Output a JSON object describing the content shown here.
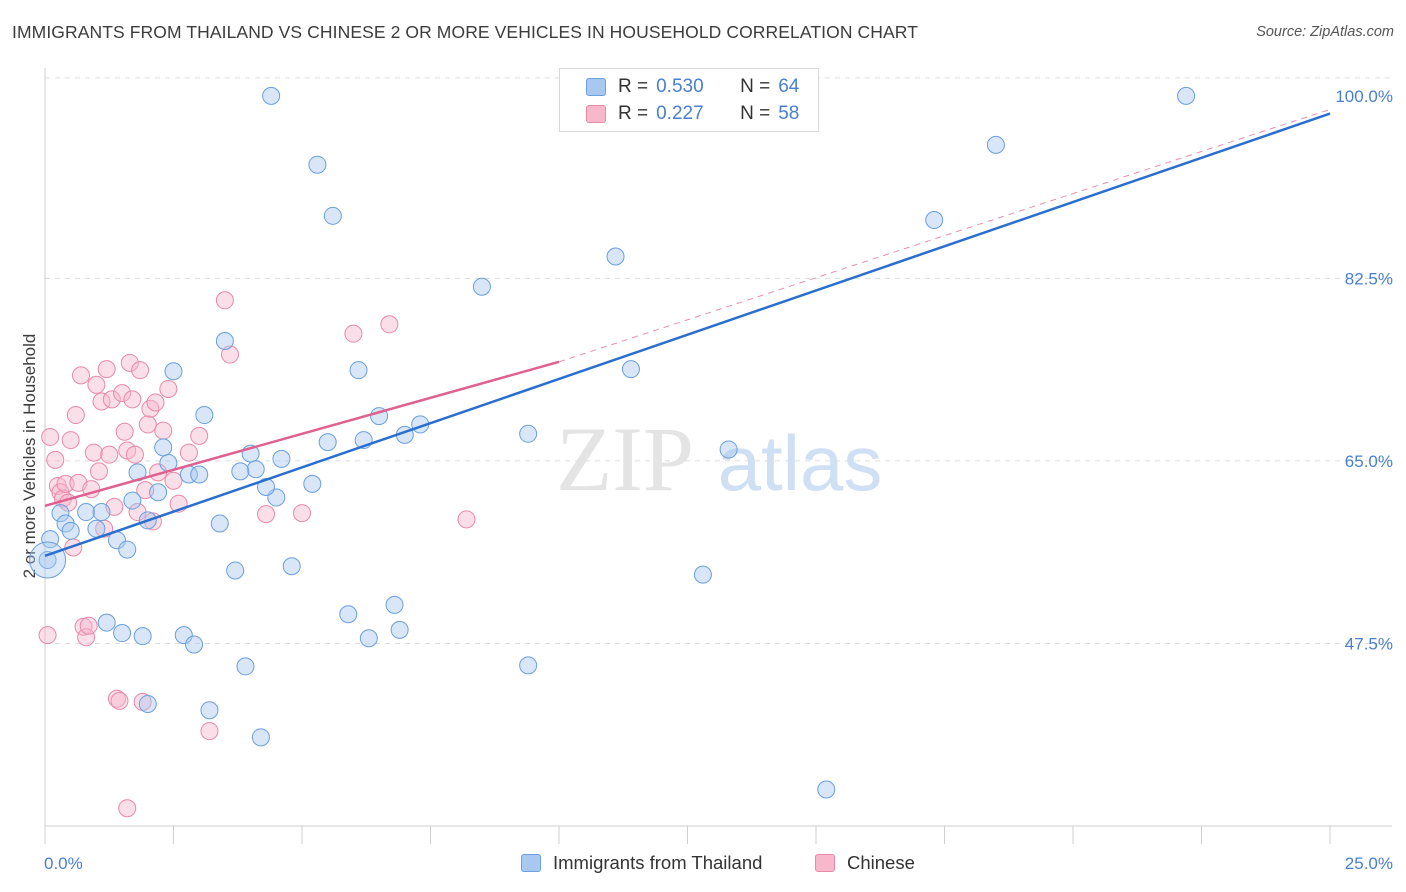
{
  "title": "IMMIGRANTS FROM THAILAND VS CHINESE 2 OR MORE VEHICLES IN HOUSEHOLD CORRELATION CHART",
  "source": "Source: ZipAtlas.com",
  "watermark": {
    "zip": "ZIP",
    "atlas": "atlas"
  },
  "legend": {
    "r_label": "R =",
    "n_label": "N =",
    "rows": [
      {
        "series": "Immigrants from Thailand",
        "r": "0.530",
        "n": "64"
      },
      {
        "series": "Chinese",
        "r": "0.227",
        "n": "58"
      }
    ]
  },
  "colors": {
    "blue_fill": "#a8c8f0",
    "blue_stroke": "#6a9fe0",
    "blue_line": "#2a6fcf",
    "pink_fill": "#f7b8cb",
    "pink_stroke": "#e889a8",
    "pink_line": "#e06090",
    "tick_label": "#4a7fd0",
    "grid": "#dcdcdc"
  },
  "chart_data": {
    "type": "scatter",
    "title": "IMMIGRANTS FROM THAILAND VS CHINESE 2 OR MORE VEHICLES IN HOUSEHOLD CORRELATION CHART",
    "xlabel": "",
    "ylabel": "2 or more Vehicles in Household",
    "x_tick_labels": [
      "0.0%",
      "25.0%"
    ],
    "y_tick_labels": [
      "100.0%",
      "82.5%",
      "65.0%",
      "47.5%"
    ],
    "y_ticks": [
      100.0,
      82.5,
      65.0,
      47.5
    ],
    "xlim": [
      0,
      25
    ],
    "ylim": [
      30,
      102
    ],
    "grid": true,
    "legend_position": "top-center",
    "series": [
      {
        "name": "Immigrants from Thailand",
        "r": 0.53,
        "n": 64,
        "trend": {
          "x": [
            0,
            25
          ],
          "y": [
            55.9,
            98.3
          ]
        },
        "points": [
          [
            0.1,
            57.5
          ],
          [
            0.3,
            60.0
          ],
          [
            0.4,
            59.0
          ],
          [
            0.5,
            58.3
          ],
          [
            0.8,
            60.1
          ],
          [
            1.0,
            58.5
          ],
          [
            1.1,
            60.1
          ],
          [
            1.4,
            57.4
          ],
          [
            1.2,
            49.5
          ],
          [
            1.5,
            48.5
          ],
          [
            1.9,
            48.2
          ],
          [
            1.6,
            56.5
          ],
          [
            1.7,
            61.2
          ],
          [
            2.0,
            59.3
          ],
          [
            2.2,
            62.0
          ],
          [
            1.8,
            63.9
          ],
          [
            2.0,
            41.7
          ],
          [
            2.3,
            66.3
          ],
          [
            2.5,
            73.6
          ],
          [
            2.7,
            48.3
          ],
          [
            2.8,
            63.7
          ],
          [
            2.9,
            47.4
          ],
          [
            3.0,
            63.7
          ],
          [
            3.1,
            69.4
          ],
          [
            3.2,
            41.1
          ],
          [
            3.4,
            59.0
          ],
          [
            3.5,
            76.5
          ],
          [
            3.7,
            54.5
          ],
          [
            3.9,
            45.3
          ],
          [
            4.0,
            65.7
          ],
          [
            4.1,
            64.2
          ],
          [
            4.2,
            38.5
          ],
          [
            4.4,
            100.0
          ],
          [
            4.5,
            61.5
          ],
          [
            4.6,
            65.2
          ],
          [
            4.8,
            54.9
          ],
          [
            5.2,
            62.8
          ],
          [
            5.3,
            93.4
          ],
          [
            5.5,
            66.8
          ],
          [
            5.6,
            88.5
          ],
          [
            5.9,
            50.3
          ],
          [
            6.1,
            73.7
          ],
          [
            6.2,
            67.0
          ],
          [
            6.3,
            48.0
          ],
          [
            6.5,
            69.3
          ],
          [
            6.8,
            51.2
          ],
          [
            6.9,
            48.8
          ],
          [
            7.0,
            67.5
          ],
          [
            7.3,
            68.5
          ],
          [
            8.5,
            81.7
          ],
          [
            9.4,
            67.6
          ],
          [
            9.4,
            45.4
          ],
          [
            11.1,
            84.6
          ],
          [
            11.4,
            73.8
          ],
          [
            12.8,
            54.1
          ],
          [
            13.3,
            66.1
          ],
          [
            15.2,
            33.5
          ],
          [
            17.3,
            88.1
          ],
          [
            18.5,
            95.3
          ],
          [
            22.2,
            100.0
          ],
          [
            0.05,
            55.5
          ],
          [
            3.8,
            64.0
          ],
          [
            4.3,
            62.5
          ],
          [
            2.4,
            64.8
          ]
        ]
      },
      {
        "name": "Chinese",
        "r": 0.227,
        "n": 58,
        "trend": {
          "x": [
            0,
            10
          ],
          "y": [
            60.7,
            74.5
          ]
        },
        "trend_extension": {
          "x": [
            10,
            25
          ],
          "y": [
            74.5,
            98.7
          ]
        },
        "points": [
          [
            0.05,
            48.3
          ],
          [
            0.1,
            67.3
          ],
          [
            0.2,
            65.1
          ],
          [
            0.25,
            62.6
          ],
          [
            0.3,
            62.0
          ],
          [
            0.35,
            61.4
          ],
          [
            0.4,
            62.8
          ],
          [
            0.45,
            61.0
          ],
          [
            0.5,
            67.0
          ],
          [
            0.55,
            56.7
          ],
          [
            0.6,
            69.4
          ],
          [
            0.65,
            62.9
          ],
          [
            0.7,
            73.2
          ],
          [
            0.75,
            49.1
          ],
          [
            0.8,
            48.1
          ],
          [
            0.85,
            49.2
          ],
          [
            0.9,
            62.3
          ],
          [
            0.95,
            65.8
          ],
          [
            1.0,
            72.3
          ],
          [
            1.05,
            64.0
          ],
          [
            1.1,
            70.7
          ],
          [
            1.15,
            58.5
          ],
          [
            1.2,
            73.8
          ],
          [
            1.25,
            65.6
          ],
          [
            1.3,
            70.9
          ],
          [
            1.35,
            60.6
          ],
          [
            1.4,
            42.2
          ],
          [
            1.45,
            42.0
          ],
          [
            1.5,
            71.5
          ],
          [
            1.55,
            67.8
          ],
          [
            1.6,
            66.0
          ],
          [
            1.65,
            74.4
          ],
          [
            1.7,
            70.9
          ],
          [
            1.75,
            65.6
          ],
          [
            1.8,
            60.1
          ],
          [
            1.85,
            73.7
          ],
          [
            1.9,
            41.9
          ],
          [
            1.95,
            62.2
          ],
          [
            2.0,
            68.5
          ],
          [
            2.05,
            70.0
          ],
          [
            2.1,
            59.2
          ],
          [
            2.15,
            70.6
          ],
          [
            2.2,
            63.9
          ],
          [
            2.3,
            67.9
          ],
          [
            2.4,
            71.9
          ],
          [
            2.5,
            63.1
          ],
          [
            2.6,
            60.9
          ],
          [
            2.8,
            65.8
          ],
          [
            3.0,
            67.4
          ],
          [
            3.2,
            39.1
          ],
          [
            3.5,
            80.4
          ],
          [
            3.6,
            75.2
          ],
          [
            4.3,
            59.9
          ],
          [
            5.0,
            60.0
          ],
          [
            6.0,
            77.2
          ],
          [
            6.7,
            78.1
          ],
          [
            8.2,
            59.4
          ],
          [
            1.6,
            31.7
          ]
        ]
      }
    ]
  }
}
